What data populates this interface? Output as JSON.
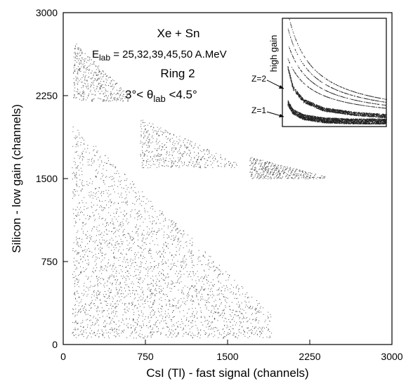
{
  "chart_data": [
    {
      "type": "scatter",
      "title": "Xe + Sn",
      "annotations": {
        "energy_prefix": "E",
        "energy_sub": "lab",
        "energy_values": " = 25,32,39,45,50 A.MeV",
        "ring": "Ring 2",
        "angle_low": "3°< θ",
        "angle_sub": "lab",
        "angle_high": " <4.5°"
      },
      "xlabel": "CsI (Tl) - fast signal (channels)",
      "ylabel": "Silicon - low gain (channels)",
      "xlim": [
        0,
        3000
      ],
      "ylim": [
        0,
        3000
      ],
      "xticks": [
        "0",
        "750",
        "1500",
        "2250",
        "3000"
      ],
      "yticks": [
        "0",
        "750",
        "1500",
        "2250",
        "3000"
      ],
      "grid": false,
      "legend": "none",
      "regions": [
        {
          "x": [
            90,
            600
          ],
          "y": [
            2200,
            2750
          ]
        },
        {
          "x": [
            700,
            1600
          ],
          "y": [
            1600,
            2050
          ]
        },
        {
          "x": [
            1700,
            2400
          ],
          "y": [
            1500,
            1700
          ]
        },
        {
          "x": [
            80,
            1900
          ],
          "y": [
            60,
            2000
          ]
        }
      ],
      "dot_color": "#555555"
    },
    {
      "type": "scatter",
      "title": "high gain",
      "labels": [
        "Z=2",
        "Z=1"
      ],
      "curves": [
        {
          "name": "Z=1",
          "x": [
            0.05,
            0.1,
            0.2,
            0.4,
            0.7,
            1.0
          ],
          "y": [
            0.22,
            0.14,
            0.09,
            0.06,
            0.05,
            0.05
          ]
        },
        {
          "name": "Z=2",
          "x": [
            0.05,
            0.1,
            0.2,
            0.4,
            0.7,
            1.0
          ],
          "y": [
            0.55,
            0.36,
            0.24,
            0.16,
            0.12,
            0.1
          ]
        }
      ],
      "xlim": [
        0,
        1
      ],
      "ylim": [
        0,
        1
      ]
    }
  ]
}
